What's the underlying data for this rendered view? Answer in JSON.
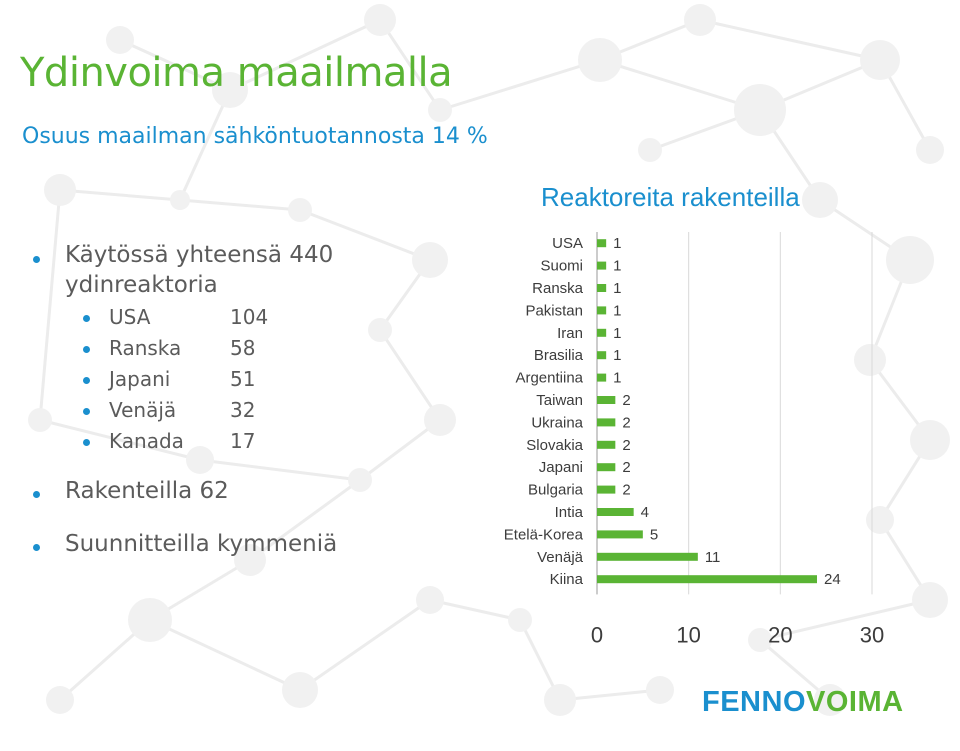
{
  "slide": {
    "title": "Ydinvoima maailmalla",
    "subtitle": "Osuus maailman sähköntuotannosta 14 %"
  },
  "bullets": {
    "total_line1": "Käytössä yhteensä 440",
    "total_line2": "ydinreaktoria",
    "countries": [
      {
        "name": "USA",
        "value": "104"
      },
      {
        "name": "Ranska",
        "value": "58"
      },
      {
        "name": "Japani",
        "value": "51"
      },
      {
        "name": "Venäjä",
        "value": "32"
      },
      {
        "name": "Kanada",
        "value": "17"
      }
    ],
    "under_construction": "Rakenteilla 62",
    "planned": "Suunnitteilla kymmeniä"
  },
  "logo": {
    "part1": "FENNO",
    "part2": "VOIMA"
  },
  "colors": {
    "green": "#5ab434",
    "blue": "#1a8fce",
    "text": "#5b5b5b",
    "bar": "#5ab434"
  },
  "chart_data": {
    "type": "bar",
    "orientation": "horizontal",
    "title": "Reaktoreita rakenteilla",
    "categories": [
      "USA",
      "Suomi",
      "Ranska",
      "Pakistan",
      "Iran",
      "Brasilia",
      "Argentiina",
      "Taiwan",
      "Ukraina",
      "Slovakia",
      "Japani",
      "Bulgaria",
      "Intia",
      "Etelä-Korea",
      "Venäjä",
      "Kiina"
    ],
    "values": [
      1,
      1,
      1,
      1,
      1,
      1,
      1,
      2,
      2,
      2,
      2,
      2,
      4,
      5,
      11,
      24
    ],
    "xlim": [
      0,
      30
    ],
    "xticks": [
      0,
      10,
      20,
      30
    ],
    "grid": true,
    "data_labels": true
  }
}
